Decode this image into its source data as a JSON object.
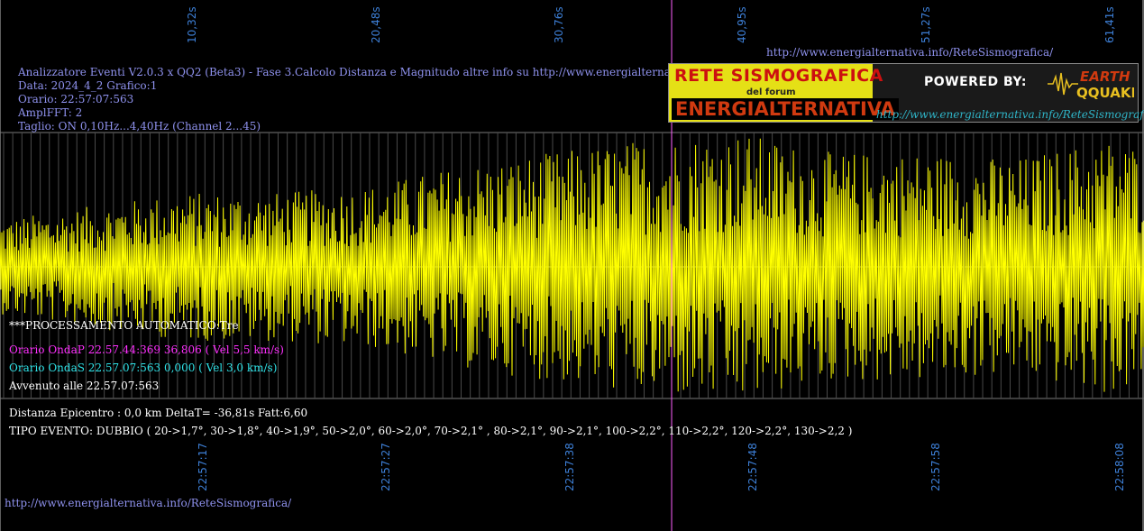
{
  "header": {
    "line1": "Analizzatore Eventi V2.0.3 x QQ2 (Beta3) - Fase 3.Calcolo Distanza e Magnitudo altre info su http://www.energialternativa.info/ReteSism",
    "line2": "Data: 2024_4_2 Grafico:1",
    "line3": "Orario: 22:57:07:563",
    "line4": "AmplFFT: 2",
    "line5": "Taglio: ON 0,10Hz...4,40Hz       (Channel 2...45)"
  },
  "top_url": "http://www.energialternativa.info/ReteSismografica/",
  "bottom_url": "http://www.energialternativa.info/ReteSismografica/",
  "logo": {
    "title": "RETE SISMOGRAFICA",
    "subtitle": "del forum",
    "brand": "ENERGIALTERNATIVA",
    "powered": "POWERED BY:",
    "eq_top": "EARTH",
    "eq_bottom": "QQUAKE",
    "url": "http://www.energialternativa.info/ReteSismografica"
  },
  "processing": {
    "mode": "***PROCESSAMENTO AUTOMATICO:Tre",
    "wave_p": "Orario OndaP 22.57.44:369  36,806 ( Vel 5,5 km/s)",
    "wave_s": "Orario OndaS 22.57.07:563  0,000 ( Vel 3,0 km/s)",
    "occurred": "Avvenuto alle 22.57.07:563",
    "distance": "Distanza Epicentro : 0,0 km DeltaT= -36,81s  Fatt:6,60",
    "event_type": "TIPO EVENTO: DUBBIO ( 20->1,7°, 30->1,8°, 40->1,9°, 50->2,0°, 60->2,0°, 70->2,1° , 80->2,1°, 90->2,1°, 100->2,2°, 110->2,2°, 120->2,2°, 130->2,2 )"
  },
  "colors": {
    "background": "#000000",
    "trace": "#ffff00",
    "grid": "#7a7a7a",
    "marker": "#ff5fff",
    "axis_labels": "#3d7fd6",
    "info_text": "#8f92ee"
  },
  "chart_data": {
    "type": "line",
    "title": "",
    "xlabel": "",
    "ylabel": "",
    "x_top_ticks": [
      "10,32s",
      "20,48s",
      "30,76s",
      "40,95s",
      "51,27s",
      "61,41s"
    ],
    "x_bottom_ticks": [
      "22:57:17",
      "22:57:27",
      "22:57:38",
      "22:57:48",
      "22:57:58",
      "22:58:08"
    ],
    "xlim_seconds": [
      0,
      62
    ],
    "marker_seconds": 36.4,
    "grid": true,
    "series": [
      {
        "envelope_time_s": [
          0,
          5,
          10,
          15,
          20,
          25,
          30,
          35,
          40,
          45,
          50,
          55,
          60,
          62
        ],
        "envelope_amplitude": [
          0.35,
          0.45,
          0.55,
          0.55,
          0.6,
          0.75,
          0.85,
          0.95,
          1.0,
          0.85,
          0.85,
          0.8,
          0.95,
          0.9
        ],
        "note_samples_per_second": 20
      }
    ]
  }
}
